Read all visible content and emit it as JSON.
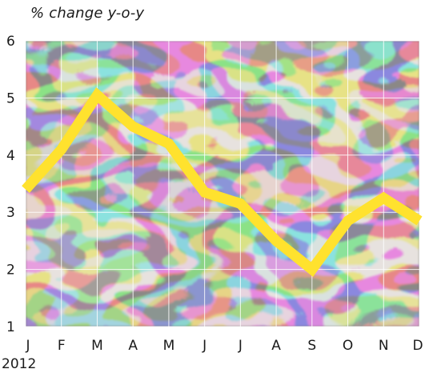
{
  "chart_data": {
    "type": "line",
    "subtitle": "% change y-o-y",
    "categories": [
      "J",
      "F",
      "M",
      "A",
      "M",
      "J",
      "J",
      "A",
      "S",
      "O",
      "N",
      "D"
    ],
    "period_label": "2012",
    "series": [
      {
        "values": [
          3.4,
          4.1,
          5.05,
          4.5,
          4.2,
          3.35,
          3.15,
          2.5,
          2.0,
          2.85,
          3.25,
          2.85
        ]
      }
    ],
    "ylim": [
      1,
      6
    ],
    "yticks": [
      1,
      2,
      3,
      4,
      5,
      6
    ],
    "grid": true,
    "colors": {
      "line": "#ffe22e",
      "background_dark": "#5a5552",
      "background_light": "#e9e3da",
      "gridline": "#ffffff"
    }
  }
}
